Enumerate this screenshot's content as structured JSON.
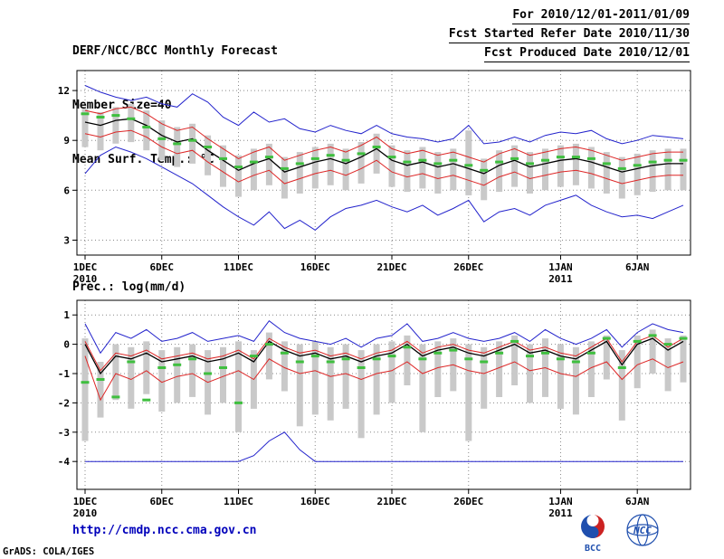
{
  "header": {
    "title": "DERF/NCC/BCC Monthly Forecast",
    "member_size": "Member Size=40",
    "variable": "Mean Surf. Temp.: °C",
    "valid_range": "For 2010/12/01-2011/01/09",
    "refer_date": "Fcst Started Refer Date 2010/11/30",
    "produced_date": "Fcst Produced Date 2010/12/01"
  },
  "footer": {
    "url": "http://cmdp.ncc.cma.gov.cn",
    "credit": "GrADS: COLA/IGES",
    "logo_bcc_text": "BCC",
    "logo_ncc_text": "NCC"
  },
  "colors": {
    "envelope_blue": "#2323cc",
    "std_band_red": "#dd2626",
    "ensemble_mean_black": "#000000",
    "observation_green": "#3fbf3f",
    "spread_bar_gray": "#c9c9c9",
    "url_blue": "#0000bb",
    "logo_red": "#cc2222",
    "logo_blue": "#1f4fae"
  },
  "chart_data": [
    {
      "type": "line",
      "title": "Mean Surf. Temp.: °C",
      "xlabel": "",
      "ylabel": "Mean Surf. Temp. (°C)",
      "grid": true,
      "legend": "none",
      "n_days": 40,
      "ylim": [
        2.1,
        13.2
      ],
      "yticks": [
        3,
        6,
        9,
        12
      ],
      "x_ticks": [
        {
          "day": 0,
          "label": "1DEC",
          "sub": "2010"
        },
        {
          "day": 5,
          "label": "6DEC"
        },
        {
          "day": 10,
          "label": "11DEC"
        },
        {
          "day": 15,
          "label": "16DEC"
        },
        {
          "day": 20,
          "label": "21DEC"
        },
        {
          "day": 25,
          "label": "26DEC"
        },
        {
          "day": 31,
          "label": "1JAN",
          "sub": "2011"
        },
        {
          "day": 36,
          "label": "6JAN"
        }
      ],
      "bars": {
        "name": "ensemble-spread",
        "color": "#c9c9c9",
        "lo": [
          8.6,
          8.4,
          8.8,
          8.9,
          8.4,
          7.8,
          7.4,
          7.6,
          6.9,
          6.2,
          5.6,
          6.0,
          6.3,
          5.5,
          5.8,
          6.1,
          6.3,
          6.0,
          6.4,
          7.0,
          6.2,
          5.9,
          6.1,
          5.8,
          6.0,
          5.7,
          5.4,
          5.9,
          6.2,
          5.8,
          6.0,
          6.2,
          6.3,
          6.1,
          5.8,
          5.5,
          5.7,
          5.9,
          6.0,
          6.0
        ],
        "hi": [
          10.9,
          10.7,
          11.0,
          11.2,
          10.8,
          10.2,
          9.8,
          10.0,
          9.3,
          8.7,
          8.1,
          8.5,
          8.8,
          8.0,
          8.3,
          8.6,
          8.8,
          8.5,
          8.9,
          9.4,
          8.7,
          8.4,
          8.6,
          8.3,
          8.5,
          9.6,
          7.9,
          8.4,
          8.7,
          8.3,
          8.5,
          8.7,
          8.8,
          8.6,
          8.3,
          8.0,
          8.2,
          8.4,
          8.5,
          8.5
        ]
      },
      "series": [
        {
          "name": "ensemble-max",
          "color": "#2323cc",
          "width": 1,
          "values": [
            12.3,
            11.9,
            11.6,
            11.4,
            11.6,
            11.2,
            11.0,
            11.8,
            11.3,
            10.4,
            9.9,
            10.7,
            10.1,
            10.3,
            9.7,
            9.5,
            9.9,
            9.6,
            9.4,
            9.9,
            9.4,
            9.2,
            9.1,
            8.9,
            9.1,
            9.9,
            8.8,
            8.9,
            9.2,
            8.9,
            9.3,
            9.5,
            9.4,
            9.6,
            9.1,
            8.8,
            9.0,
            9.3,
            9.2,
            9.1
          ]
        },
        {
          "name": "ensemble-min",
          "color": "#2323cc",
          "width": 1,
          "values": [
            7.0,
            8.1,
            8.6,
            8.3,
            7.9,
            7.4,
            6.9,
            6.4,
            5.7,
            5.0,
            4.4,
            3.9,
            4.7,
            3.7,
            4.2,
            3.6,
            4.4,
            4.9,
            5.1,
            5.4,
            5.0,
            4.7,
            5.1,
            4.5,
            4.9,
            5.4,
            4.1,
            4.7,
            4.9,
            4.5,
            5.1,
            5.4,
            5.7,
            5.1,
            4.7,
            4.4,
            4.5,
            4.3,
            4.7,
            5.1
          ]
        },
        {
          "name": "mean-plus-std",
          "color": "#dd2626",
          "width": 1,
          "values": [
            10.8,
            10.6,
            10.9,
            11.0,
            10.6,
            10.0,
            9.6,
            9.8,
            9.1,
            8.5,
            7.9,
            8.3,
            8.6,
            7.8,
            8.1,
            8.4,
            8.6,
            8.3,
            8.7,
            9.2,
            8.5,
            8.2,
            8.4,
            8.1,
            8.3,
            8.0,
            7.7,
            8.2,
            8.5,
            8.1,
            8.3,
            8.5,
            8.6,
            8.4,
            8.1,
            7.8,
            8.0,
            8.2,
            8.3,
            8.3
          ]
        },
        {
          "name": "mean-minus-std",
          "color": "#dd2626",
          "width": 1,
          "values": [
            9.4,
            9.2,
            9.5,
            9.6,
            9.2,
            8.6,
            8.2,
            8.4,
            7.7,
            7.1,
            6.5,
            6.9,
            7.2,
            6.4,
            6.7,
            7.0,
            7.2,
            6.9,
            7.3,
            7.8,
            7.1,
            6.8,
            7.0,
            6.7,
            6.9,
            6.6,
            6.3,
            6.8,
            7.1,
            6.7,
            6.9,
            7.1,
            7.2,
            7.0,
            6.7,
            6.4,
            6.6,
            6.8,
            6.9,
            6.9
          ]
        },
        {
          "name": "ensemble-mean",
          "color": "#000000",
          "width": 1.3,
          "values": [
            10.1,
            9.9,
            10.2,
            10.3,
            9.9,
            9.3,
            8.9,
            9.1,
            8.4,
            7.8,
            7.2,
            7.6,
            7.9,
            7.1,
            7.4,
            7.7,
            7.9,
            7.6,
            8.0,
            8.5,
            7.8,
            7.5,
            7.7,
            7.4,
            7.6,
            7.3,
            7.0,
            7.5,
            7.8,
            7.4,
            7.6,
            7.8,
            7.9,
            7.7,
            7.4,
            7.1,
            7.3,
            7.5,
            7.6,
            7.6
          ]
        },
        {
          "name": "observation",
          "color": "#3fbf3f",
          "marker": "hdash",
          "values": [
            10.6,
            10.4,
            10.5,
            10.3,
            9.8,
            9.1,
            8.8,
            9.0,
            8.6,
            7.9,
            7.4,
            7.7,
            8.0,
            7.3,
            7.6,
            7.9,
            8.1,
            7.8,
            8.2,
            8.6,
            8.0,
            7.7,
            7.8,
            7.6,
            7.8,
            7.5,
            7.2,
            7.7,
            7.9,
            7.6,
            7.8,
            8.0,
            8.0,
            7.9,
            7.6,
            7.3,
            7.5,
            7.7,
            7.8,
            7.8
          ]
        }
      ]
    },
    {
      "type": "line",
      "title": "Prec.: log(mm/d)",
      "xlabel": "",
      "ylabel": "Prec. log(mm/d)",
      "grid": true,
      "legend": "none",
      "n_days": 40,
      "ylim": [
        -4.95,
        1.5
      ],
      "yticks": [
        -4,
        -3,
        -2,
        -1,
        0,
        1
      ],
      "x_ticks": [
        {
          "day": 0,
          "label": "1DEC",
          "sub": "2010"
        },
        {
          "day": 5,
          "label": "6DEC"
        },
        {
          "day": 10,
          "label": "11DEC"
        },
        {
          "day": 15,
          "label": "16DEC"
        },
        {
          "day": 20,
          "label": "21DEC"
        },
        {
          "day": 25,
          "label": "26DEC"
        },
        {
          "day": 31,
          "label": "1JAN",
          "sub": "2011"
        },
        {
          "day": 36,
          "label": "6JAN"
        }
      ],
      "bars": {
        "name": "ensemble-spread",
        "color": "#c9c9c9",
        "lo": [
          -3.3,
          -2.5,
          -1.9,
          -2.2,
          -1.7,
          -2.3,
          -2.0,
          -1.8,
          -2.4,
          -2.0,
          -3.0,
          -2.2,
          -1.2,
          -1.6,
          -2.8,
          -2.4,
          -2.6,
          -2.2,
          -3.2,
          -2.4,
          -2.0,
          -1.4,
          -3.0,
          -1.8,
          -1.6,
          -3.3,
          -2.2,
          -1.8,
          -1.4,
          -2.0,
          -1.8,
          -2.2,
          -2.4,
          -1.8,
          -1.2,
          -2.6,
          -1.5,
          -1.0,
          -1.6,
          -1.3
        ],
        "hi": [
          0.2,
          -0.6,
          0.0,
          -0.1,
          0.1,
          -0.2,
          -0.1,
          0.0,
          -0.2,
          -0.1,
          0.1,
          -0.2,
          0.4,
          0.1,
          0.0,
          0.1,
          -0.1,
          0.0,
          -0.2,
          0.0,
          0.1,
          0.3,
          0.0,
          0.1,
          0.2,
          0.0,
          -0.1,
          0.1,
          0.3,
          0.0,
          0.2,
          0.0,
          -0.1,
          0.1,
          0.3,
          -0.2,
          0.3,
          0.5,
          0.2,
          0.3
        ]
      },
      "series": [
        {
          "name": "ensemble-max",
          "color": "#2323cc",
          "width": 1,
          "values": [
            0.7,
            -0.3,
            0.4,
            0.2,
            0.5,
            0.1,
            0.2,
            0.4,
            0.1,
            0.2,
            0.3,
            0.1,
            0.8,
            0.4,
            0.2,
            0.1,
            0.0,
            0.2,
            -0.1,
            0.2,
            0.3,
            0.7,
            0.1,
            0.2,
            0.4,
            0.2,
            0.1,
            0.2,
            0.4,
            0.1,
            0.5,
            0.2,
            0.0,
            0.2,
            0.5,
            -0.1,
            0.4,
            0.7,
            0.5,
            0.4
          ]
        },
        {
          "name": "ensemble-min",
          "color": "#2323cc",
          "width": 1,
          "values": [
            -4,
            -4,
            -4,
            -4,
            -4,
            -4,
            -4,
            -4,
            -4,
            -4,
            -4,
            -3.8,
            -3.3,
            -3.0,
            -3.6,
            -4,
            -4,
            -4,
            -4,
            -4,
            -4,
            -4,
            -4,
            -4,
            -4,
            -4,
            -4,
            -4,
            -4,
            -4,
            -4,
            -4,
            -4,
            -4,
            -4,
            -4,
            -4,
            -4,
            -4,
            -4
          ]
        },
        {
          "name": "mean-plus-std",
          "color": "#dd2626",
          "width": 1,
          "values": [
            0.1,
            -0.9,
            -0.3,
            -0.4,
            -0.2,
            -0.5,
            -0.4,
            -0.3,
            -0.5,
            -0.4,
            -0.2,
            -0.5,
            0.2,
            -0.1,
            -0.3,
            -0.2,
            -0.4,
            -0.3,
            -0.5,
            -0.3,
            -0.2,
            0.1,
            -0.3,
            -0.1,
            0.0,
            -0.2,
            -0.3,
            -0.1,
            0.1,
            -0.2,
            -0.1,
            -0.3,
            -0.4,
            -0.1,
            0.2,
            -0.6,
            0.1,
            0.3,
            -0.1,
            0.2
          ]
        },
        {
          "name": "mean-minus-std",
          "color": "#dd2626",
          "width": 1,
          "values": [
            -0.4,
            -1.9,
            -1.0,
            -1.2,
            -0.9,
            -1.3,
            -1.1,
            -1.0,
            -1.3,
            -1.1,
            -0.9,
            -1.2,
            -0.5,
            -0.8,
            -1.0,
            -0.9,
            -1.1,
            -1.0,
            -1.2,
            -1.0,
            -0.9,
            -0.6,
            -1.0,
            -0.8,
            -0.7,
            -0.9,
            -1.0,
            -0.8,
            -0.6,
            -0.9,
            -0.8,
            -1.0,
            -1.1,
            -0.8,
            -0.6,
            -1.2,
            -0.7,
            -0.5,
            -0.8,
            -0.6
          ]
        },
        {
          "name": "ensemble-mean",
          "color": "#000000",
          "width": 1.3,
          "values": [
            0.0,
            -1.0,
            -0.4,
            -0.5,
            -0.3,
            -0.6,
            -0.5,
            -0.4,
            -0.6,
            -0.5,
            -0.3,
            -0.6,
            0.1,
            -0.2,
            -0.4,
            -0.3,
            -0.5,
            -0.4,
            -0.6,
            -0.4,
            -0.3,
            0.0,
            -0.4,
            -0.2,
            -0.1,
            -0.3,
            -0.4,
            -0.2,
            0.0,
            -0.3,
            -0.2,
            -0.4,
            -0.5,
            -0.2,
            0.1,
            -0.7,
            0.0,
            0.2,
            -0.2,
            0.1
          ]
        },
        {
          "name": "observation",
          "color": "#3fbf3f",
          "marker": "hdash",
          "values": [
            -1.3,
            -1.2,
            -1.8,
            -0.6,
            -1.9,
            -0.8,
            -0.7,
            -0.5,
            -1.0,
            -0.8,
            -2.0,
            -0.4,
            0.0,
            -0.3,
            -0.6,
            -0.4,
            -0.6,
            -0.5,
            -0.8,
            -0.5,
            -0.4,
            -0.1,
            -0.5,
            -0.3,
            -0.2,
            -0.5,
            -0.6,
            -0.3,
            0.1,
            -0.4,
            -0.3,
            -0.5,
            -0.6,
            -0.3,
            0.2,
            -0.8,
            0.1,
            0.3,
            0.0,
            0.2
          ]
        }
      ]
    }
  ]
}
